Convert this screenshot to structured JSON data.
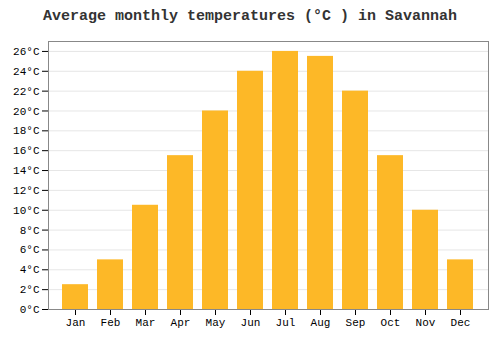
{
  "chart_data": {
    "type": "bar",
    "title": "Average monthly temperatures (°C ) in Savannah",
    "categories": [
      "Jan",
      "Feb",
      "Mar",
      "Apr",
      "May",
      "Jun",
      "Jul",
      "Aug",
      "Sep",
      "Oct",
      "Nov",
      "Dec"
    ],
    "values": [
      2.5,
      5.0,
      10.5,
      15.5,
      20.0,
      24.0,
      26.0,
      25.5,
      22.0,
      15.5,
      10.0,
      5.0
    ],
    "color": "#FDB827",
    "ylim": [
      0,
      27
    ],
    "yticks": [
      {
        "value": 0,
        "label": "0°C"
      },
      {
        "value": 2,
        "label": "2°C"
      },
      {
        "value": 4,
        "label": "4°C"
      },
      {
        "value": 6,
        "label": "6°C"
      },
      {
        "value": 8,
        "label": "8°C"
      },
      {
        "value": 10,
        "label": "10°C"
      },
      {
        "value": 12,
        "label": "12°C"
      },
      {
        "value": 14,
        "label": "14°C"
      },
      {
        "value": 16,
        "label": "16°C"
      },
      {
        "value": 18,
        "label": "18°C"
      },
      {
        "value": 20,
        "label": "20°C"
      },
      {
        "value": 22,
        "label": "22°C"
      },
      {
        "value": 24,
        "label": "24°C"
      },
      {
        "value": 26,
        "label": "26°C"
      }
    ],
    "grid": true
  }
}
